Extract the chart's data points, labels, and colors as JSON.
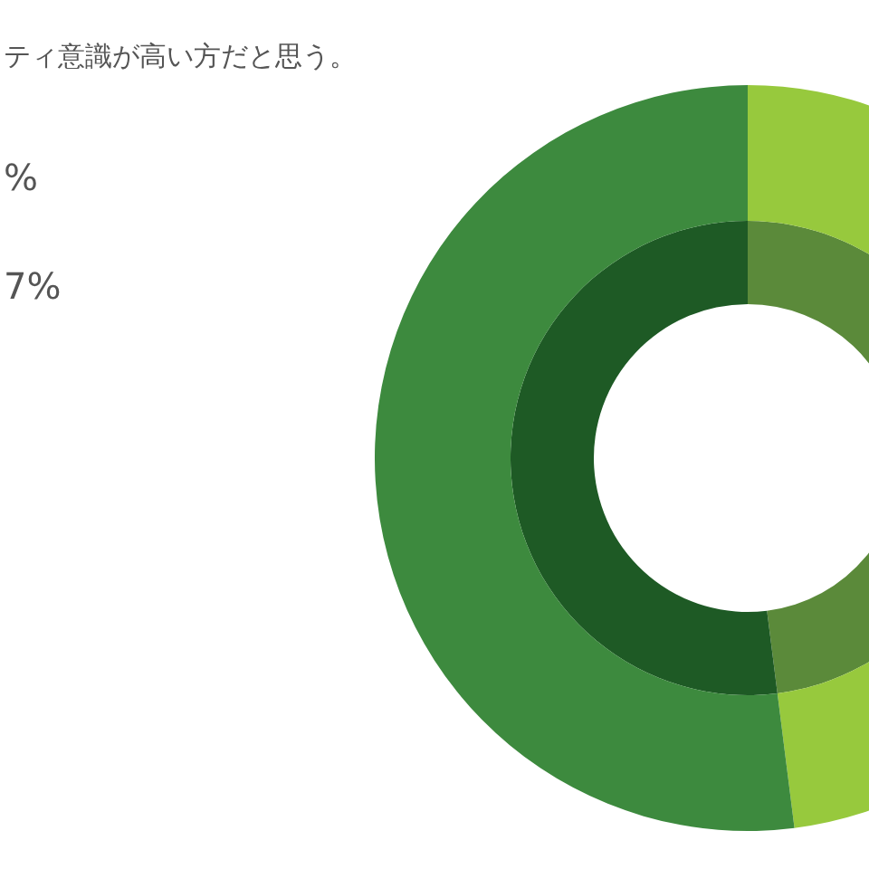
{
  "chart_data": {
    "type": "donut",
    "title": "ティ意識が高い方だと思う。",
    "categories": [
      null,
      null
    ],
    "series": [
      {
        "values": [
          48,
          52
        ],
        "colors": [
          "#5b8a3a",
          "#1e5a25"
        ]
      },
      {
        "values": [
          48,
          52
        ],
        "colors": [
          "#97c93d",
          "#3d8a3e"
        ]
      }
    ],
    "annotations": [
      "%",
      "7%"
    ]
  }
}
